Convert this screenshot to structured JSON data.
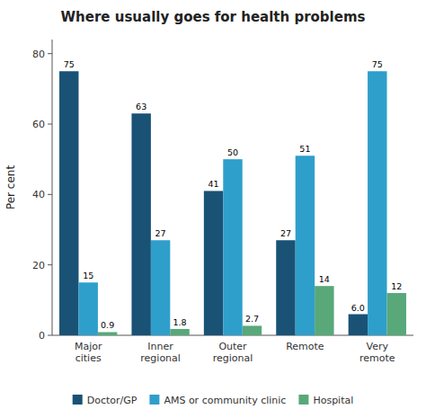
{
  "chart_data": {
    "type": "bar",
    "title": "Where usually goes for health problems",
    "categories": [
      "Major\ncities",
      "Inner\nregional",
      "Outer\nregional",
      "Remote",
      "Very\nremote"
    ],
    "series": [
      {
        "name": "Doctor/GP",
        "color": "#1a5276",
        "values": [
          75,
          63,
          41,
          27,
          6.0
        ],
        "value_labels": [
          "75",
          "63",
          "41",
          "27",
          "6.0"
        ]
      },
      {
        "name": "AMS or community clinic",
        "color": "#2e9fcb",
        "values": [
          15,
          27,
          50,
          51,
          75
        ],
        "value_labels": [
          "15",
          "27",
          "50",
          "51",
          "75"
        ]
      },
      {
        "name": "Hospital",
        "color": "#58a87a",
        "values": [
          0.9,
          1.8,
          2.7,
          14,
          12
        ],
        "value_labels": [
          "0.9",
          "1.8",
          "2.7",
          "14",
          "12"
        ]
      }
    ],
    "ylabel": "Per cent",
    "ylim": [
      0,
      84
    ],
    "yticks": [
      0,
      20,
      40,
      60,
      80
    ],
    "data_labels": true,
    "legend": "bottom",
    "grid": false
  }
}
